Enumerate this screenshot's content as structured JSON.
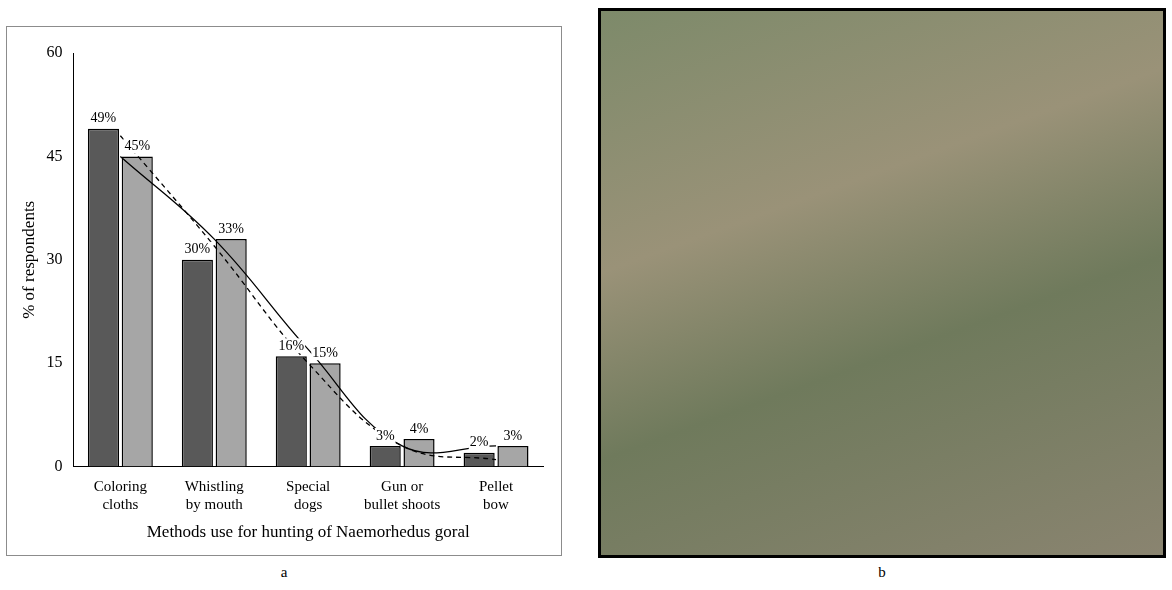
{
  "chart_data": {
    "type": "bar",
    "x_label": "Methods use for hunting of Naemorhedus goral",
    "y_label": "% of respondents",
    "categories": [
      "Coloring cloths",
      "Whistling by mouth",
      "Special dogs",
      "Gun or bullet shoots",
      "Pellet bow"
    ],
    "series": [
      {
        "color": "#595959",
        "values": [
          49,
          30,
          16,
          3,
          2
        ],
        "value_labels": [
          "49%",
          "30%",
          "16%",
          "3%",
          "2%"
        ]
      },
      {
        "color": "#a6a6a6",
        "values": [
          45,
          33,
          15,
          4,
          3
        ],
        "value_labels": [
          "45%",
          "33%",
          "15%",
          "4%",
          "3%"
        ]
      },
      {
        "type": "line",
        "color": "#000000",
        "line_style": "solid",
        "marker": "none",
        "values": [
          45,
          33,
          17,
          3,
          3
        ]
      },
      {
        "type": "line",
        "color": "#000000",
        "line_style": "dashed",
        "marker": "none",
        "values": [
          48,
          32,
          15,
          3,
          1
        ]
      }
    ],
    "ylim": [
      0,
      60
    ],
    "yticks": [
      0,
      15,
      30,
      45,
      60
    ],
    "grid": false,
    "data_labels": true
  },
  "panel_labels": [
    "a",
    "b"
  ]
}
